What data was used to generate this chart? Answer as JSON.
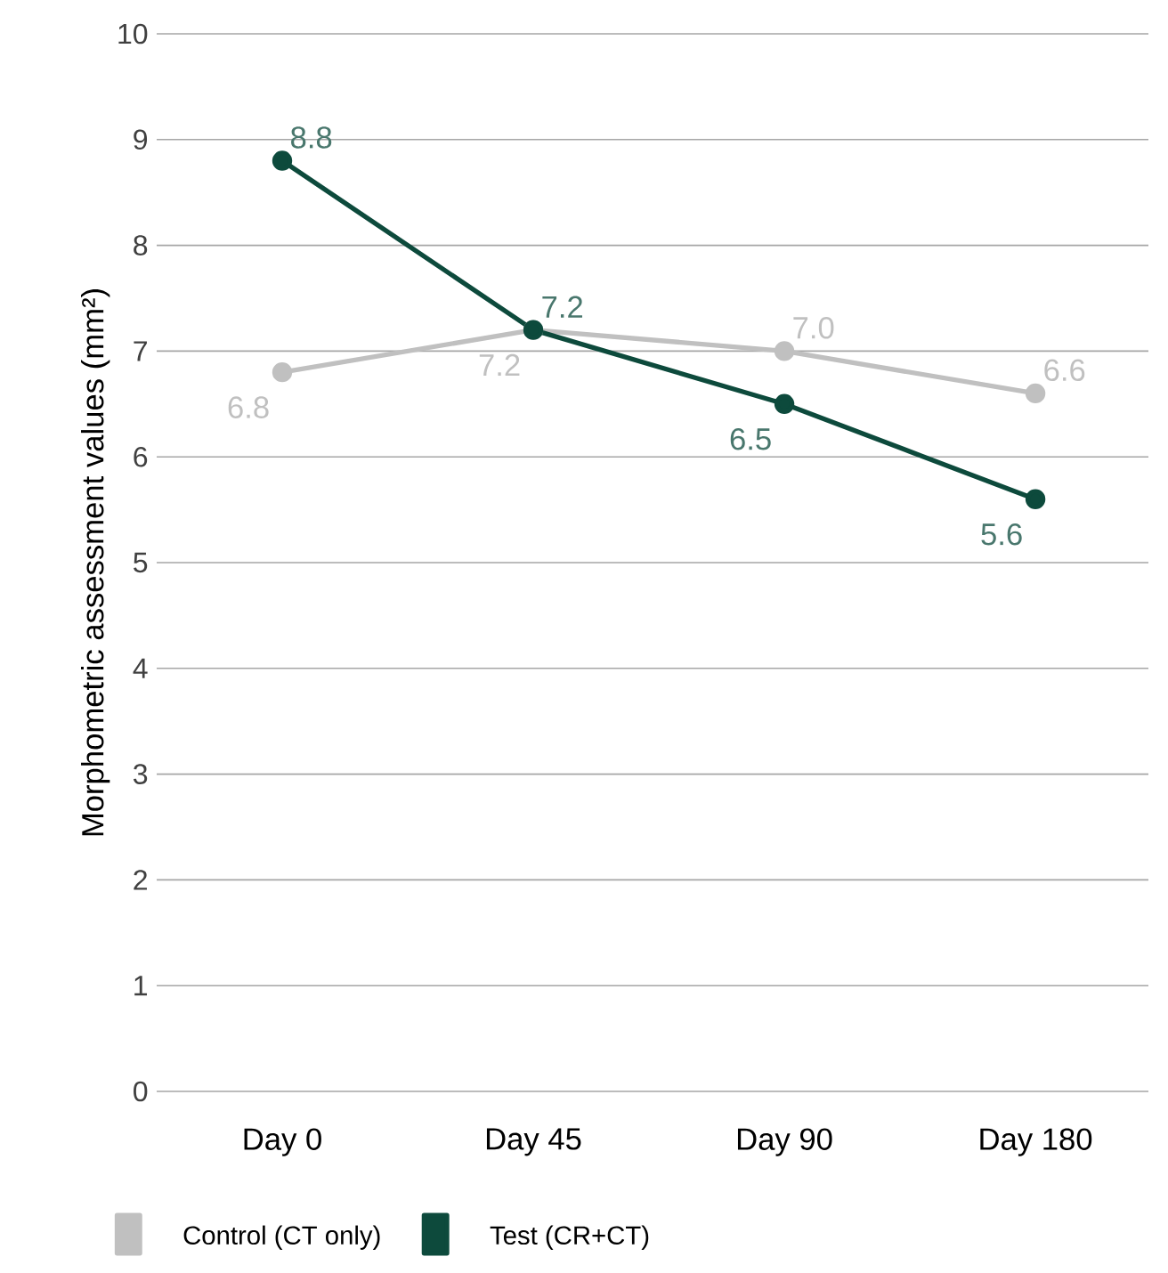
{
  "chart_data": {
    "type": "line",
    "ylabel": "Morphometric assessment values (mm²)",
    "categories": [
      "Day 0",
      "Day 45",
      "Day 90",
      "Day 180"
    ],
    "series": [
      {
        "name": "Control (CT only)",
        "color": "#c0c0c0",
        "values": [
          6.8,
          7.2,
          7.0,
          6.6
        ],
        "value_labels": [
          "6.8",
          "7.2",
          "7.0",
          "6.6"
        ]
      },
      {
        "name": "Test (CR+CT)",
        "color": "#0d4a3c",
        "values": [
          8.8,
          7.2,
          6.5,
          5.6
        ],
        "value_labels": [
          "8.8",
          "7.2",
          "6.5",
          "5.6"
        ]
      }
    ],
    "ylim": [
      0,
      10
    ],
    "yticks": [
      0,
      1,
      2,
      3,
      4,
      5,
      6,
      7,
      8,
      9,
      10
    ],
    "grid": "y",
    "legend": "bottom left",
    "marker": "circle",
    "line_style": "solid"
  }
}
